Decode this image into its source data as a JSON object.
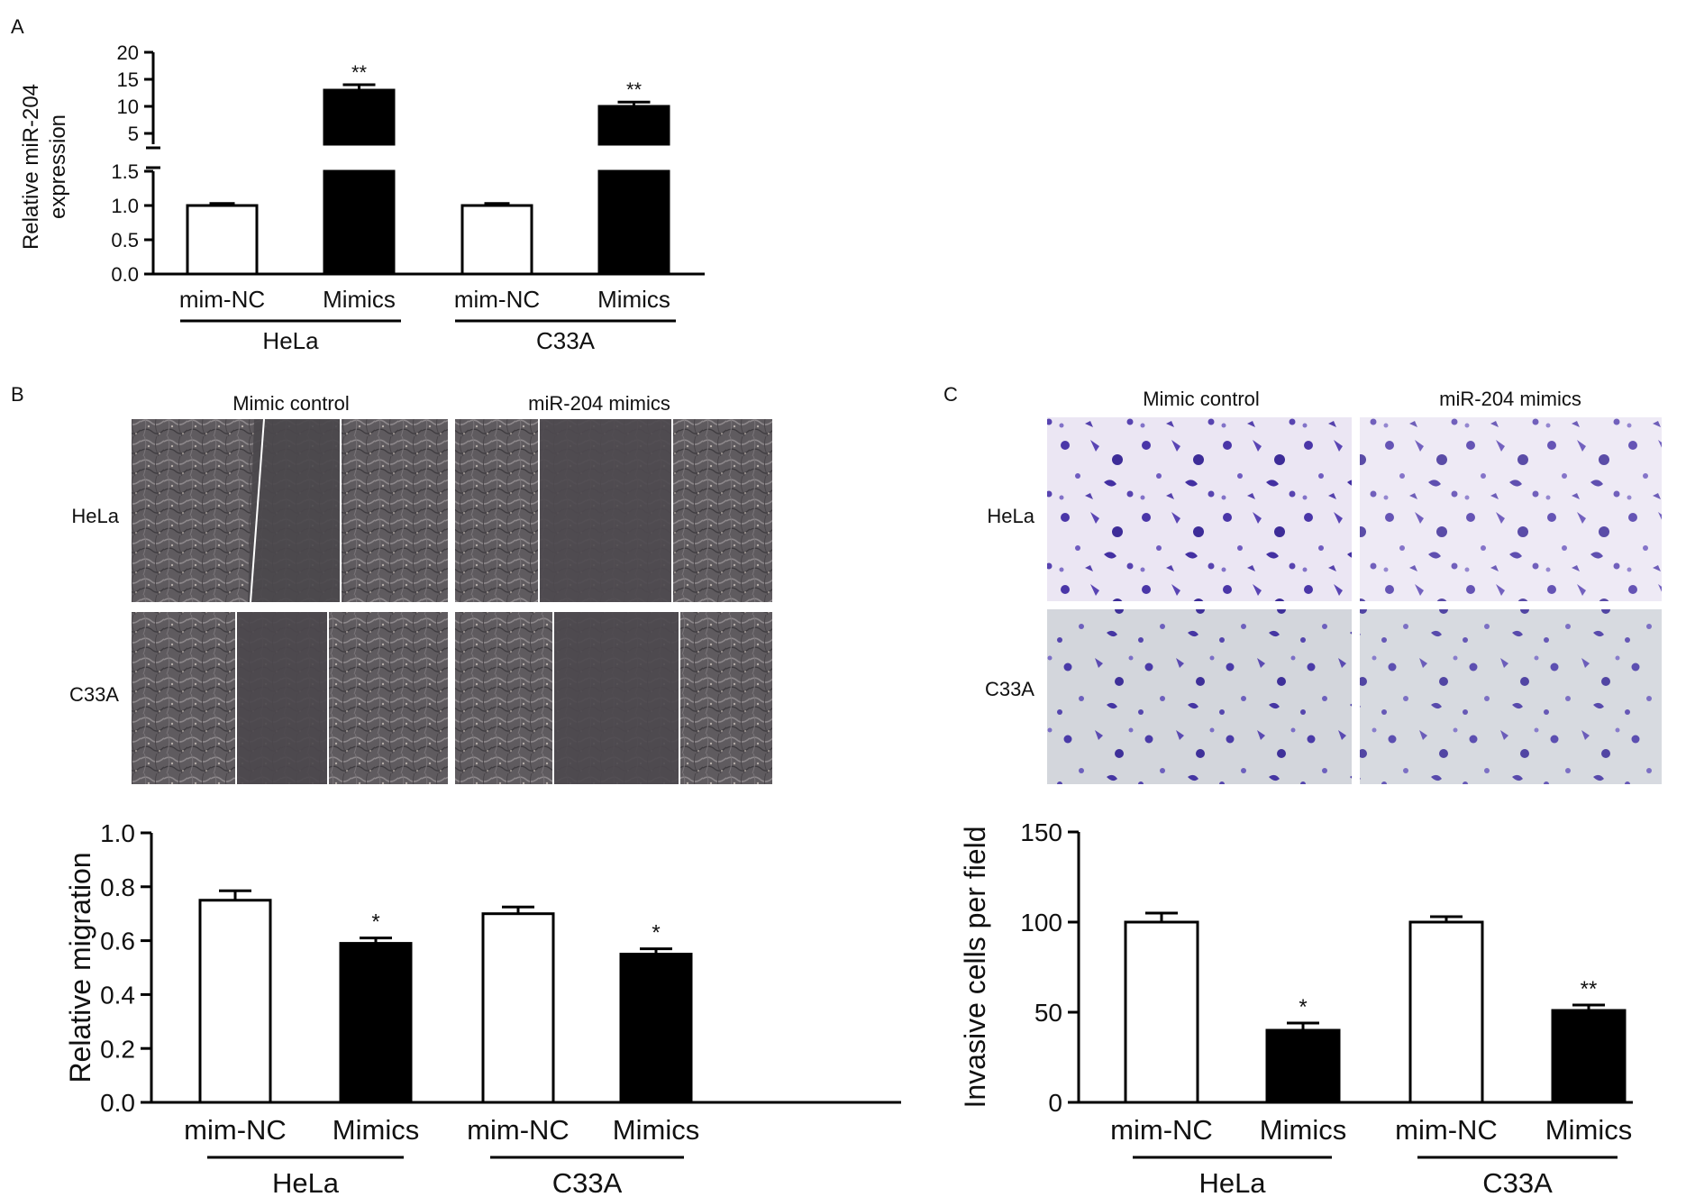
{
  "panels": {
    "a": {
      "letter": "A"
    },
    "b": {
      "letter": "B"
    },
    "c": {
      "letter": "C"
    }
  },
  "micrographs": {
    "b": {
      "columns": [
        "Mimic control",
        "miR-204 mimics"
      ],
      "rows": [
        "HeLa",
        "C33A"
      ]
    },
    "c": {
      "columns": [
        "Mimic control",
        "miR-204 mimics"
      ],
      "rows": [
        "HeLa",
        "C33A"
      ]
    }
  },
  "chart_data": [
    {
      "id": "A",
      "type": "bar",
      "ylabel": [
        "Relative miR-204",
        "expression"
      ],
      "categories": [
        "mim-NC",
        "Mimics",
        "mim-NC",
        "Mimics"
      ],
      "groups": [
        {
          "label": "HeLa",
          "span": [
            0,
            1
          ]
        },
        {
          "label": "C33A",
          "span": [
            2,
            3
          ]
        }
      ],
      "series": [
        {
          "values": [
            1.0,
            13.0,
            1.0,
            10.0
          ],
          "errors": [
            0.03,
            1.0,
            0.03,
            0.8
          ]
        }
      ],
      "fills": [
        "#ffffff",
        "#000000",
        "#ffffff",
        "#000000"
      ],
      "significance": [
        "",
        "**",
        "",
        "**"
      ],
      "broken_axis": true,
      "lower_ylim": [
        0,
        1.5
      ],
      "lower_yticks": [
        "0.0",
        "0.5",
        "1.0",
        "1.5"
      ],
      "upper_ylim": [
        3,
        20
      ],
      "upper_yticks": [
        "5",
        "10",
        "15",
        "20"
      ]
    },
    {
      "id": "B",
      "type": "bar",
      "ylabel": "Relative migration",
      "categories": [
        "mim-NC",
        "Mimics",
        "mim-NC",
        "Mimics"
      ],
      "groups": [
        {
          "label": "HeLa",
          "span": [
            0,
            1
          ]
        },
        {
          "label": "C33A",
          "span": [
            2,
            3
          ]
        }
      ],
      "series": [
        {
          "values": [
            0.75,
            0.59,
            0.7,
            0.55
          ],
          "errors": [
            0.035,
            0.02,
            0.025,
            0.02
          ]
        }
      ],
      "fills": [
        "#ffffff",
        "#000000",
        "#ffffff",
        "#000000"
      ],
      "significance": [
        "",
        "*",
        "",
        "*"
      ],
      "ylim": [
        0,
        1.0
      ],
      "yticks": [
        "0.0",
        "0.2",
        "0.4",
        "0.6",
        "0.8",
        "1.0"
      ]
    },
    {
      "id": "C",
      "type": "bar",
      "ylabel": "Invasive cells per field",
      "categories": [
        "mim-NC",
        "Mimics",
        "mim-NC",
        "Mimics"
      ],
      "groups": [
        {
          "label": "HeLa",
          "span": [
            0,
            1
          ]
        },
        {
          "label": "C33A",
          "span": [
            2,
            3
          ]
        }
      ],
      "series": [
        {
          "values": [
            100,
            40,
            100,
            51
          ],
          "errors": [
            5,
            4,
            3,
            3
          ]
        }
      ],
      "fills": [
        "#ffffff",
        "#000000",
        "#ffffff",
        "#000000"
      ],
      "significance": [
        "",
        "*",
        "",
        "**"
      ],
      "ylim": [
        0,
        150
      ],
      "yticks": [
        "0",
        "50",
        "100",
        "150"
      ]
    }
  ]
}
